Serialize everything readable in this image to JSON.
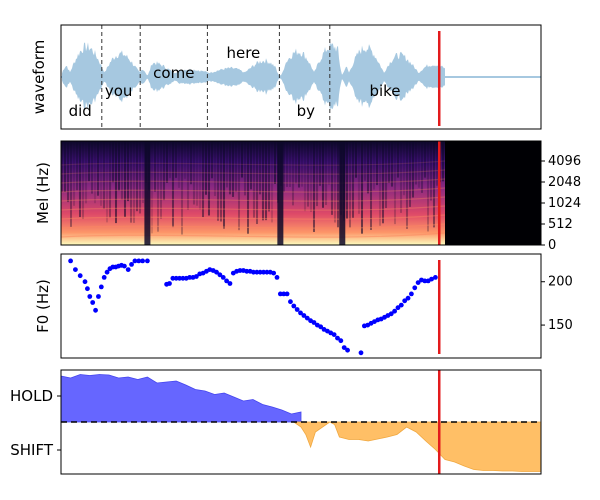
{
  "chart_data": [
    {
      "type": "area",
      "panel": "waveform",
      "ylabel": "waveform",
      "x_range": [
        0,
        100
      ],
      "word_boundaries": [
        8.5,
        16.5,
        30.5,
        45.5,
        56
      ],
      "words": [
        {
          "text": "did",
          "x": 4,
          "row": "low"
        },
        {
          "text": "you",
          "x": 12,
          "row": "mid"
        },
        {
          "text": "come",
          "x": 23.5,
          "row": "upper"
        },
        {
          "text": "here",
          "x": 38,
          "row": "top"
        },
        {
          "text": "by",
          "x": 51,
          "row": "low"
        },
        {
          "text": "bike",
          "x": 67.5,
          "row": "mid"
        }
      ],
      "speech_end_x": 80,
      "marker_x": 78.8,
      "color": "#a6c8e0",
      "marker_color": "#e31a1c"
    },
    {
      "type": "heatmap",
      "panel": "mel-spectrogram",
      "ylabel": "Mel (Hz)",
      "yticks": [
        "0",
        "512",
        "1024",
        "2048",
        "4096"
      ],
      "x_range": [
        0,
        100
      ],
      "speech_end_x": 80,
      "marker_x": 78.8,
      "colormap": "magma"
    },
    {
      "type": "scatter",
      "panel": "pitch",
      "ylabel": "F0 (Hz)",
      "ylim": [
        112,
        232
      ],
      "yticks": [
        150,
        200
      ],
      "x_range": [
        0,
        100
      ],
      "marker_x": 78.8,
      "color": "#0000ff",
      "x": [
        2,
        3,
        4,
        5,
        5.5,
        6,
        6.6,
        7.2,
        7.8,
        8.4,
        9,
        9.6,
        10.2,
        10.8,
        11.4,
        12,
        12.6,
        13.2,
        14,
        14.7,
        15.4,
        16.2,
        17,
        18,
        22,
        22.6,
        23.3,
        24,
        24.7,
        25.4,
        26.1,
        26.8,
        27.5,
        28.2,
        28.9,
        29.6,
        30.3,
        31,
        31.7,
        32.4,
        33.1,
        33.8,
        34.5,
        35.2,
        35.9,
        36.6,
        37.3,
        38,
        38.7,
        39.4,
        40.1,
        40.8,
        41.5,
        42.2,
        42.9,
        43.6,
        44.3,
        45,
        45.7,
        46.4,
        47.1,
        47.8,
        48.5,
        49.2,
        49.9,
        50.6,
        51.3,
        52,
        52.7,
        53.4,
        54.1,
        54.8,
        55.5,
        56.2,
        56.9,
        57.6,
        58.3,
        59,
        59.7,
        62.5,
        63.2,
        63.9,
        64.6,
        65.3,
        66,
        66.7,
        67.4,
        68.1,
        68.8,
        69.5,
        70.2,
        70.9,
        71.6,
        72.3,
        73,
        73.7,
        74.4,
        75.1,
        75.8,
        76.5,
        77.2,
        78
      ],
      "y": [
        224,
        214,
        207,
        200,
        192,
        183,
        176,
        167,
        183,
        194,
        205,
        211,
        215,
        217,
        217,
        218,
        219,
        218,
        214,
        220,
        224,
        224,
        224,
        224,
        197,
        198,
        204,
        204,
        204,
        204,
        204,
        205,
        205,
        206,
        209,
        210,
        212,
        214,
        213,
        211,
        208,
        205,
        201,
        198,
        210,
        212,
        213,
        213,
        212,
        212,
        211,
        211,
        211,
        211,
        211,
        211,
        210,
        205,
        186,
        186,
        186,
        177,
        172,
        168,
        164,
        161,
        158,
        155,
        153,
        150,
        148,
        145,
        143,
        141,
        139,
        135,
        132,
        124,
        121,
        118,
        149,
        150,
        152,
        154,
        156,
        157,
        159,
        161,
        163,
        166,
        170,
        173,
        178,
        181,
        186,
        193,
        199,
        202,
        201,
        201,
        203,
        205
      ]
    },
    {
      "type": "area",
      "panel": "turn-taking",
      "yticks": [
        "HOLD",
        "SHIFT"
      ],
      "x_range": [
        0,
        100
      ],
      "marker_x": 78.8,
      "hold_color": "#6666ff",
      "shift_color": "#ffbf66",
      "series": [
        {
          "name": "HOLD",
          "x": [
            0,
            2,
            4,
            6,
            8,
            10,
            12,
            14,
            16,
            18,
            20,
            22,
            24,
            26,
            28,
            30,
            32,
            34,
            36,
            38,
            40,
            42,
            44,
            46,
            48,
            50
          ],
          "values": [
            0.92,
            0.88,
            0.95,
            0.93,
            0.95,
            0.94,
            0.88,
            0.9,
            0.85,
            0.9,
            0.78,
            0.8,
            0.82,
            0.74,
            0.65,
            0.62,
            0.55,
            0.58,
            0.5,
            0.42,
            0.45,
            0.35,
            0.3,
            0.24,
            0.16,
            0.2
          ]
        },
        {
          "name": "SHIFT",
          "x": [
            48.5,
            50,
            51,
            52,
            53,
            56,
            57,
            58,
            60,
            62,
            64,
            66,
            68,
            70,
            72,
            74,
            76,
            78,
            80,
            82,
            84,
            86,
            88,
            90,
            92,
            94,
            96,
            98,
            100
          ],
          "values": [
            0,
            0.1,
            0.25,
            0.5,
            0.2,
            0,
            0.05,
            0.3,
            0.35,
            0.35,
            0.38,
            0.34,
            0.3,
            0.25,
            0.1,
            0.2,
            0.38,
            0.55,
            0.75,
            0.8,
            0.88,
            0.95,
            0.97,
            0.97,
            0.98,
            0.98,
            0.99,
            0.99,
            0.99
          ]
        }
      ]
    }
  ]
}
